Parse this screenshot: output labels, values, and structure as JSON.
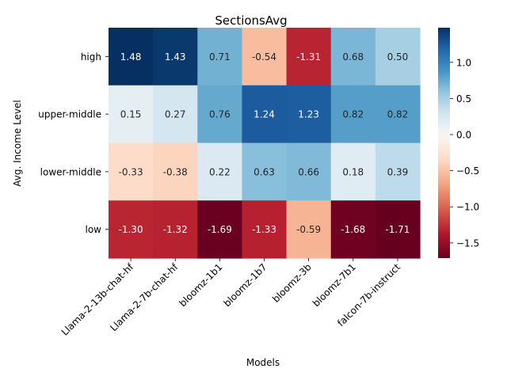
{
  "chart_data": {
    "type": "heatmap",
    "title": "SectionsAvg",
    "xlabel": "Models",
    "ylabel": "Avg. Income Level",
    "columns": [
      "Llama-2-13b-chat-hf",
      "Llama-2-7b-chat-hf",
      "bloomz-1b1",
      "bloomz-1b7",
      "bloomz-3b",
      "bloomz-7b1",
      "falcon-7b-instruct"
    ],
    "rows": [
      "high",
      "upper-middle",
      "lower-middle",
      "low"
    ],
    "values": [
      [
        1.48,
        1.43,
        0.71,
        -0.54,
        -1.31,
        0.68,
        0.5
      ],
      [
        0.15,
        0.27,
        0.76,
        1.24,
        1.23,
        0.82,
        0.82
      ],
      [
        -0.33,
        -0.38,
        0.22,
        0.63,
        0.66,
        0.18,
        0.39
      ],
      [
        -1.3,
        -1.32,
        -1.69,
        -1.33,
        -0.59,
        -1.68,
        -1.71
      ]
    ],
    "colorbar": {
      "colormap": "RdBu",
      "vmin": -1.71,
      "vmax": 1.48,
      "center": 0,
      "ticks": [
        "1.0",
        "0.5",
        "0.0",
        "−0.5",
        "−1.0",
        "−1.5"
      ]
    }
  }
}
